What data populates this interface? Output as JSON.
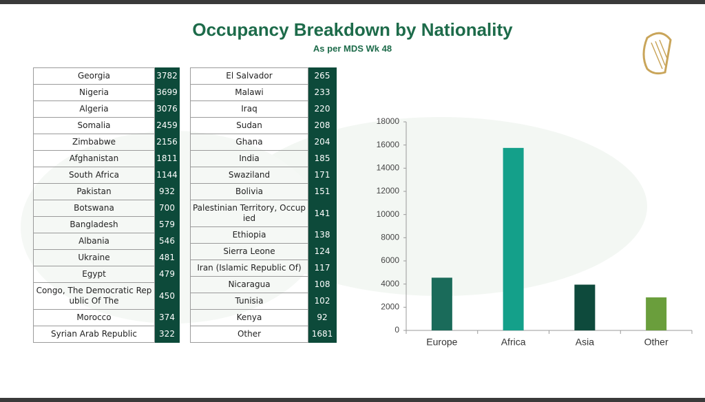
{
  "header": {
    "title": "Occupancy Breakdown by Nationality",
    "subtitle": "As per MDS Wk 48"
  },
  "tables": [
    {
      "rows": [
        [
          "Georgia",
          3782
        ],
        [
          "Nigeria",
          3699
        ],
        [
          "Algeria",
          3076
        ],
        [
          "Somalia",
          2459
        ],
        [
          "Zimbabwe",
          2156
        ],
        [
          "Afghanistan",
          1811
        ],
        [
          "South Africa",
          1144
        ],
        [
          "Pakistan",
          932
        ],
        [
          "Botswana",
          700
        ],
        [
          "Bangladesh",
          579
        ],
        [
          "Albania",
          546
        ],
        [
          "Ukraine",
          481
        ],
        [
          "Egypt",
          479
        ],
        [
          "Congo, The Democratic Republic Of The",
          450
        ],
        [
          "Morocco",
          374
        ],
        [
          "Syrian Arab Republic",
          322
        ]
      ]
    },
    {
      "rows": [
        [
          "El Salvador",
          265
        ],
        [
          "Malawi",
          233
        ],
        [
          "Iraq",
          220
        ],
        [
          "Sudan",
          208
        ],
        [
          "Ghana",
          204
        ],
        [
          "India",
          185
        ],
        [
          "Swaziland",
          171
        ],
        [
          "Bolivia",
          151
        ],
        [
          "Palestinian Territory, Occupied",
          141
        ],
        [
          "Ethiopia",
          138
        ],
        [
          "Sierra Leone",
          124
        ],
        [
          "Iran (Islamic Republic Of)",
          117
        ],
        [
          "Nicaragua",
          108
        ],
        [
          "Tunisia",
          102
        ],
        [
          "Kenya",
          92
        ],
        [
          "Other",
          1681
        ]
      ]
    }
  ],
  "chart_data": {
    "type": "bar",
    "categories": [
      "Europe",
      "Africa",
      "Asia",
      "Other"
    ],
    "values": [
      4550,
      15750,
      3950,
      2850
    ],
    "colors": [
      "#1a6b5a",
      "#14a08a",
      "#0e4a3c",
      "#6a9e3c"
    ],
    "ylim": [
      0,
      18000
    ],
    "yticks": [
      0,
      2000,
      4000,
      6000,
      8000,
      10000,
      12000,
      14000,
      16000,
      18000
    ],
    "grid": false
  }
}
